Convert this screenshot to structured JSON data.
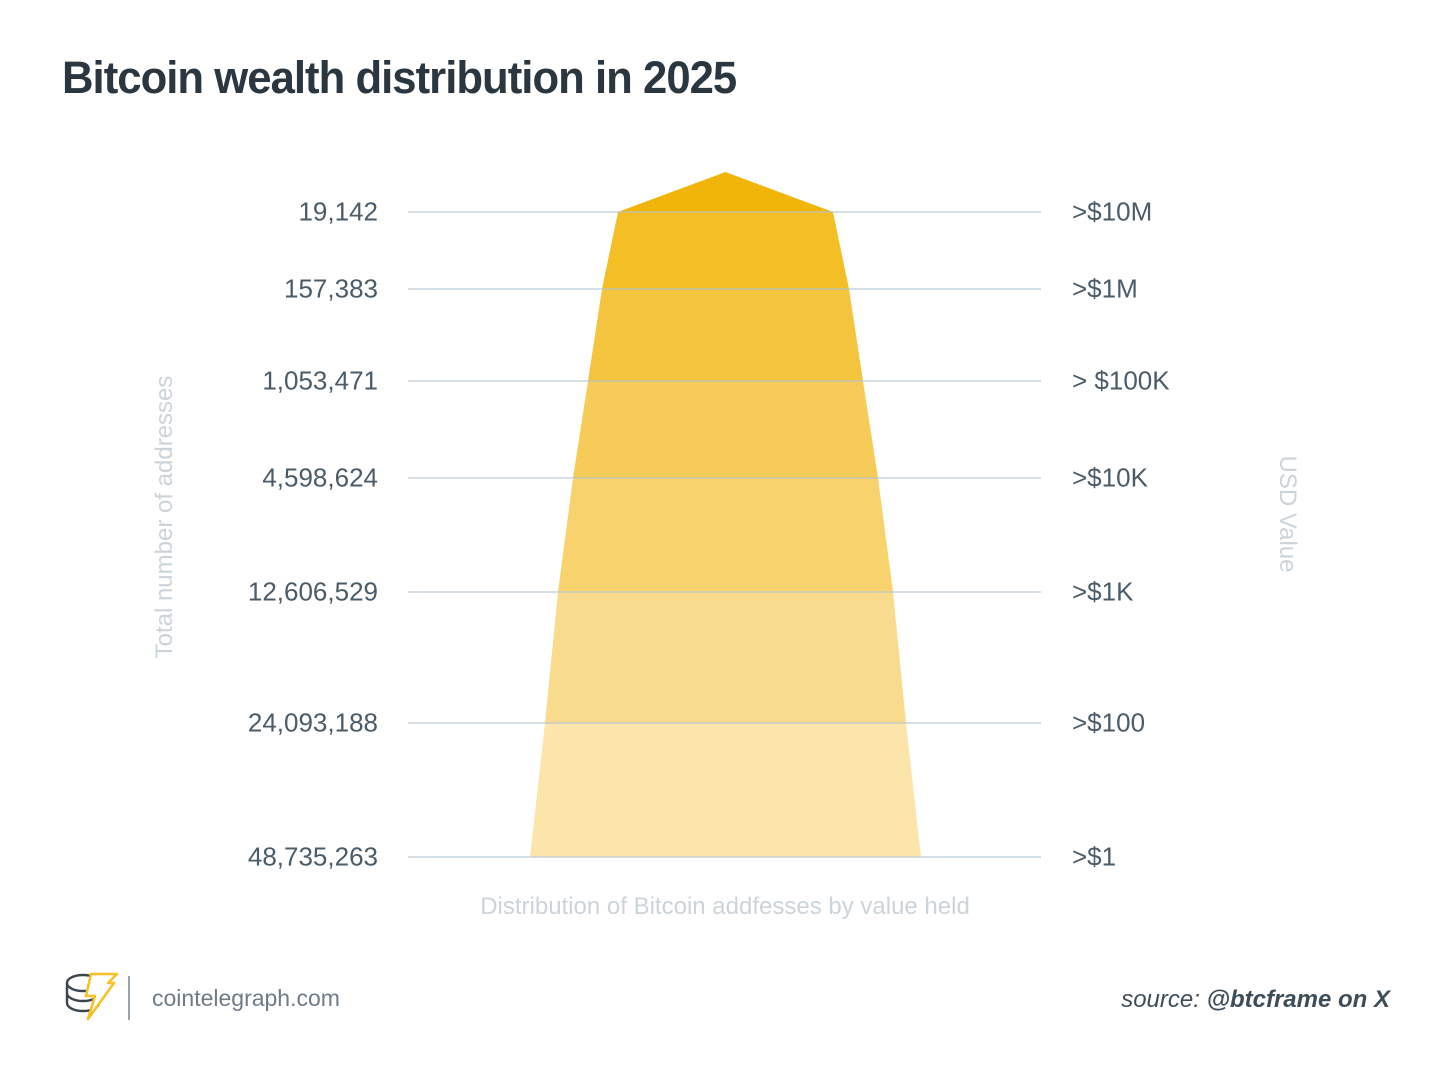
{
  "title": "Bitcoin wealth distribution in 2025",
  "chart_data": {
    "type": "funnel",
    "title": "Bitcoin wealth distribution in 2025",
    "categories": [
      ">$10M",
      ">$1M",
      "> $100K",
      ">$10K",
      ">$1K",
      ">$100",
      ">$1"
    ],
    "values": [
      19142,
      157383,
      1053471,
      4598624,
      12606529,
      24093188,
      48735263
    ],
    "address_count_labels": [
      "19,142",
      "157,383",
      "1,053,471",
      "4,598,624",
      "12,606,529",
      "24,093,188",
      "48,735,263"
    ],
    "left_axis_label": "Total number of addresses",
    "right_axis_label": "USD Value",
    "x_axis_label": "Distribution of Bitcoin addfesses by value held",
    "legend_position": "none",
    "grid": true,
    "band_colors": [
      "#F1B50A",
      "#F4BE25",
      "#F5C43F",
      "#F7CB58",
      "#F8D26D",
      "#F9DB8D",
      "#FBE5AB"
    ],
    "gridline_color": "#D9E2E7",
    "gridline_overlay_color": "rgba(179,197,207,0.55)",
    "value_label_color": "#4A5C69",
    "axis_title_color": "#CBD4DA",
    "title_color": "#2A3740"
  },
  "footer": {
    "logo_icon": "cointelegraph-coin-stack-with-lightning-bolt",
    "logo_bolt_color": "#F8C127",
    "logo_coin_color": "#3A4650",
    "site_label": "cointelegraph.com",
    "source_prefix": "source:",
    "source_name": "@btcframe on X"
  }
}
